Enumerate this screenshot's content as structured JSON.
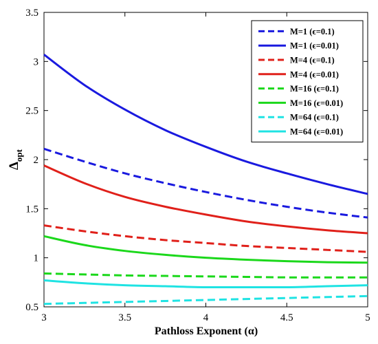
{
  "chart_data": {
    "type": "line",
    "xlabel": "Pathloss Exponent (α)",
    "ylabel": "Δ",
    "ylabel_sub": "opt",
    "xlim": [
      3,
      5
    ],
    "ylim": [
      0.5,
      3.5
    ],
    "xticks": [
      "3",
      "3.5",
      "4",
      "4.5",
      "5"
    ],
    "yticks": [
      "0.5",
      "1",
      "1.5",
      "2",
      "2.5",
      "3",
      "3.5"
    ],
    "grid": false,
    "legend_position": "top-right",
    "x": [
      3.0,
      3.25,
      3.5,
      3.75,
      4.0,
      4.25,
      4.5,
      4.75,
      5.0
    ],
    "series": [
      {
        "name": "M=1 (ϵ=0.1)",
        "color": "#1a1adf",
        "dash": true,
        "values": [
          2.11,
          1.98,
          1.86,
          1.76,
          1.67,
          1.59,
          1.52,
          1.46,
          1.41
        ]
      },
      {
        "name": "M=1 (ϵ=0.01)",
        "color": "#1a1adf",
        "dash": false,
        "values": [
          3.07,
          2.76,
          2.51,
          2.3,
          2.13,
          1.98,
          1.86,
          1.75,
          1.65
        ]
      },
      {
        "name": "M=4 (ϵ=0.1)",
        "color": "#e0201a",
        "dash": true,
        "values": [
          1.33,
          1.27,
          1.22,
          1.18,
          1.15,
          1.12,
          1.1,
          1.08,
          1.06
        ]
      },
      {
        "name": "M=4 (ϵ=0.01)",
        "color": "#e0201a",
        "dash": false,
        "values": [
          1.94,
          1.76,
          1.62,
          1.52,
          1.44,
          1.37,
          1.32,
          1.28,
          1.25
        ]
      },
      {
        "name": "M=16 (ϵ=0.1)",
        "color": "#1bd81b",
        "dash": true,
        "values": [
          0.84,
          0.83,
          0.82,
          0.815,
          0.81,
          0.805,
          0.8,
          0.8,
          0.8
        ]
      },
      {
        "name": "M=16 (ϵ=0.01)",
        "color": "#1bd81b",
        "dash": false,
        "values": [
          1.22,
          1.13,
          1.07,
          1.03,
          1.0,
          0.98,
          0.965,
          0.955,
          0.95
        ]
      },
      {
        "name": "M=64 (ϵ=0.1)",
        "color": "#1fe3e3",
        "dash": true,
        "values": [
          0.53,
          0.54,
          0.55,
          0.56,
          0.57,
          0.58,
          0.59,
          0.6,
          0.61
        ]
      },
      {
        "name": "M=64 (ϵ=0.01)",
        "color": "#1fe3e3",
        "dash": false,
        "values": [
          0.77,
          0.74,
          0.72,
          0.71,
          0.7,
          0.7,
          0.7,
          0.71,
          0.72
        ]
      }
    ]
  }
}
